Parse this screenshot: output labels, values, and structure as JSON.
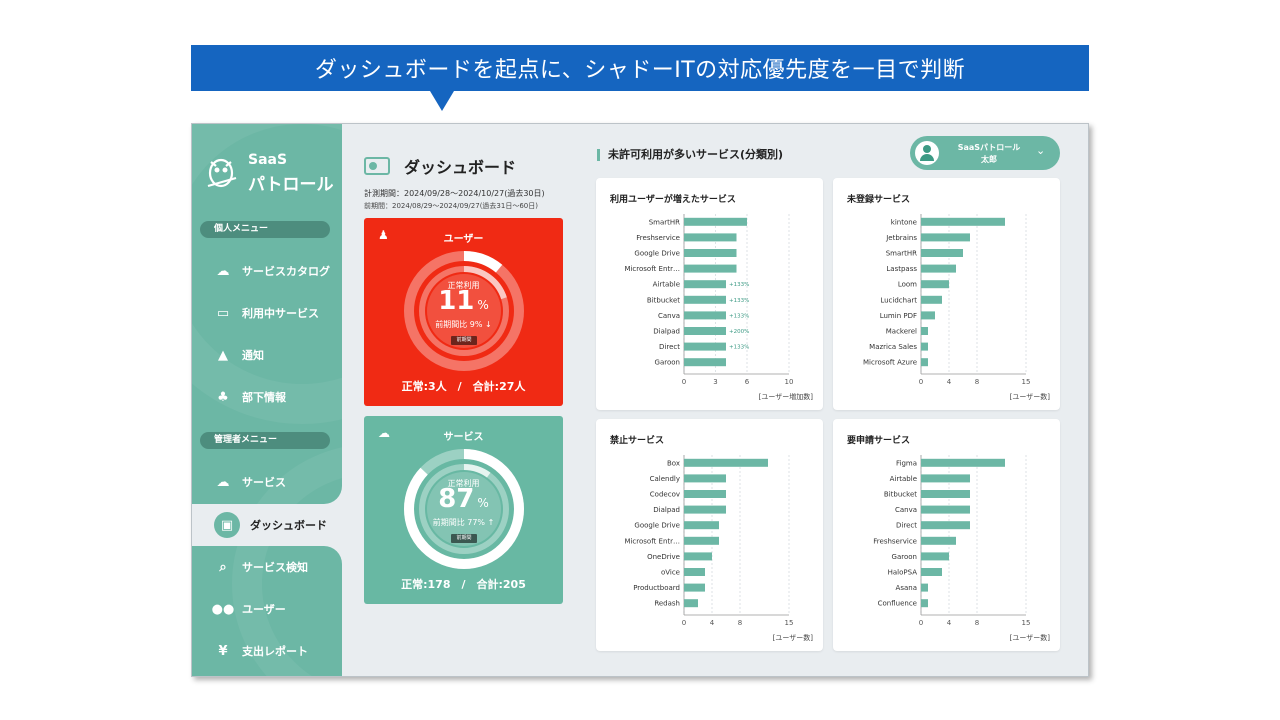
{
  "banner": "ダッシュボードを起点に、シャドーITの対応優先度を一目で判断",
  "sidebar": {
    "logo_line1": "SaaS",
    "logo_line2": "パトロール",
    "section_personal": "個人メニュー",
    "section_admin": "管理者メニュー",
    "items": [
      {
        "label": "サービスカタログ",
        "icon": "cloud-icon"
      },
      {
        "label": "利用中サービス",
        "icon": "screen-icon"
      },
      {
        "label": "通知",
        "icon": "bell-icon"
      },
      {
        "label": "部下情報",
        "icon": "team-icon"
      },
      {
        "label": "サービス",
        "icon": "cloud-icon"
      },
      {
        "label": "ダッシュボード",
        "icon": "dashboard-icon"
      },
      {
        "label": "サービス検知",
        "icon": "search-screen-icon"
      },
      {
        "label": "ユーザー",
        "icon": "users-icon"
      },
      {
        "label": "支出レポート",
        "icon": "yen-icon"
      }
    ]
  },
  "dashboard": {
    "title": "ダッシュボード",
    "period": "計測期間：2024/09/28～2024/10/27(過去30日)",
    "prev_period": "前期間：2024/08/29～2024/09/27(過去31日～60日)"
  },
  "user_card": {
    "title": "ユーザー",
    "label": "正常利用",
    "value": "11",
    "unit": "%",
    "compare": "前期間比 9% ↓",
    "tag": "前期間",
    "footer": "正常:3人　/　合計:27人",
    "ratio": 0.11,
    "prev_ratio": 0.2
  },
  "service_card": {
    "title": "サービス",
    "label": "正常利用",
    "value": "87",
    "unit": "%",
    "compare": "前期間比 77% ↑",
    "tag": "前期間",
    "footer": "正常:178　/　合計:205",
    "ratio": 0.87,
    "prev_ratio": 0.1
  },
  "section_title": "未許可利用が多いサービス(分類別)",
  "user": {
    "line1": "SaaSパトロール",
    "line2": "太郎"
  },
  "colors": {
    "accent": "#6cb7a5",
    "alert": "#f02a14",
    "banner": "#1565c0",
    "bar": "#6cb7a5"
  },
  "chart_data": [
    {
      "type": "bar",
      "title": "利用ユーザーが増えたサービス",
      "categories": [
        "SmartHR",
        "Freshservice",
        "Google Drive",
        "Microsoft Entr…",
        "Airtable",
        "Bitbucket",
        "Canva",
        "Dialpad",
        "Direct",
        "Garoon"
      ],
      "values": [
        6,
        5,
        5,
        5,
        4,
        4,
        4,
        4,
        4,
        4
      ],
      "annotations": [
        "",
        "",
        "",
        "",
        "+133%",
        "+133%",
        "+133%",
        "+200%",
        "+133%",
        ""
      ],
      "xlim": [
        0,
        10
      ],
      "ticks": [
        0,
        3,
        6,
        10
      ],
      "xlabel": "[ユーザー増加数]"
    },
    {
      "type": "bar",
      "title": "未登録サービス",
      "categories": [
        "kintone",
        "Jetbrains",
        "SmartHR",
        "Lastpass",
        "Loom",
        "Lucidchart",
        "Lumin PDF",
        "Mackerel",
        "Mazrica Sales",
        "Microsoft Azure"
      ],
      "values": [
        12,
        7,
        6,
        5,
        4,
        3,
        2,
        1,
        1,
        1
      ],
      "annotations": [],
      "xlim": [
        0,
        15
      ],
      "ticks": [
        0,
        4,
        8,
        15
      ],
      "xlabel": "[ユーザー数]"
    },
    {
      "type": "bar",
      "title": "禁止サービス",
      "categories": [
        "Box",
        "Calendly",
        "Codecov",
        "Dialpad",
        "Google Drive",
        "Microsoft Entr…",
        "OneDrive",
        "oVice",
        "Productboard",
        "Redash"
      ],
      "values": [
        12,
        6,
        6,
        6,
        5,
        5,
        4,
        3,
        3,
        2
      ],
      "annotations": [],
      "xlim": [
        0,
        15
      ],
      "ticks": [
        0,
        4,
        8,
        15
      ],
      "xlabel": "[ユーザー数]"
    },
    {
      "type": "bar",
      "title": "要申請サービス",
      "categories": [
        "Figma",
        "Airtable",
        "Bitbucket",
        "Canva",
        "Direct",
        "Freshservice",
        "Garoon",
        "HaloPSA",
        "Asana",
        "Confluence"
      ],
      "values": [
        12,
        7,
        7,
        7,
        7,
        5,
        4,
        3,
        1,
        1
      ],
      "annotations": [],
      "xlim": [
        0,
        15
      ],
      "ticks": [
        0,
        4,
        8,
        15
      ],
      "xlabel": "[ユーザー数]"
    }
  ]
}
